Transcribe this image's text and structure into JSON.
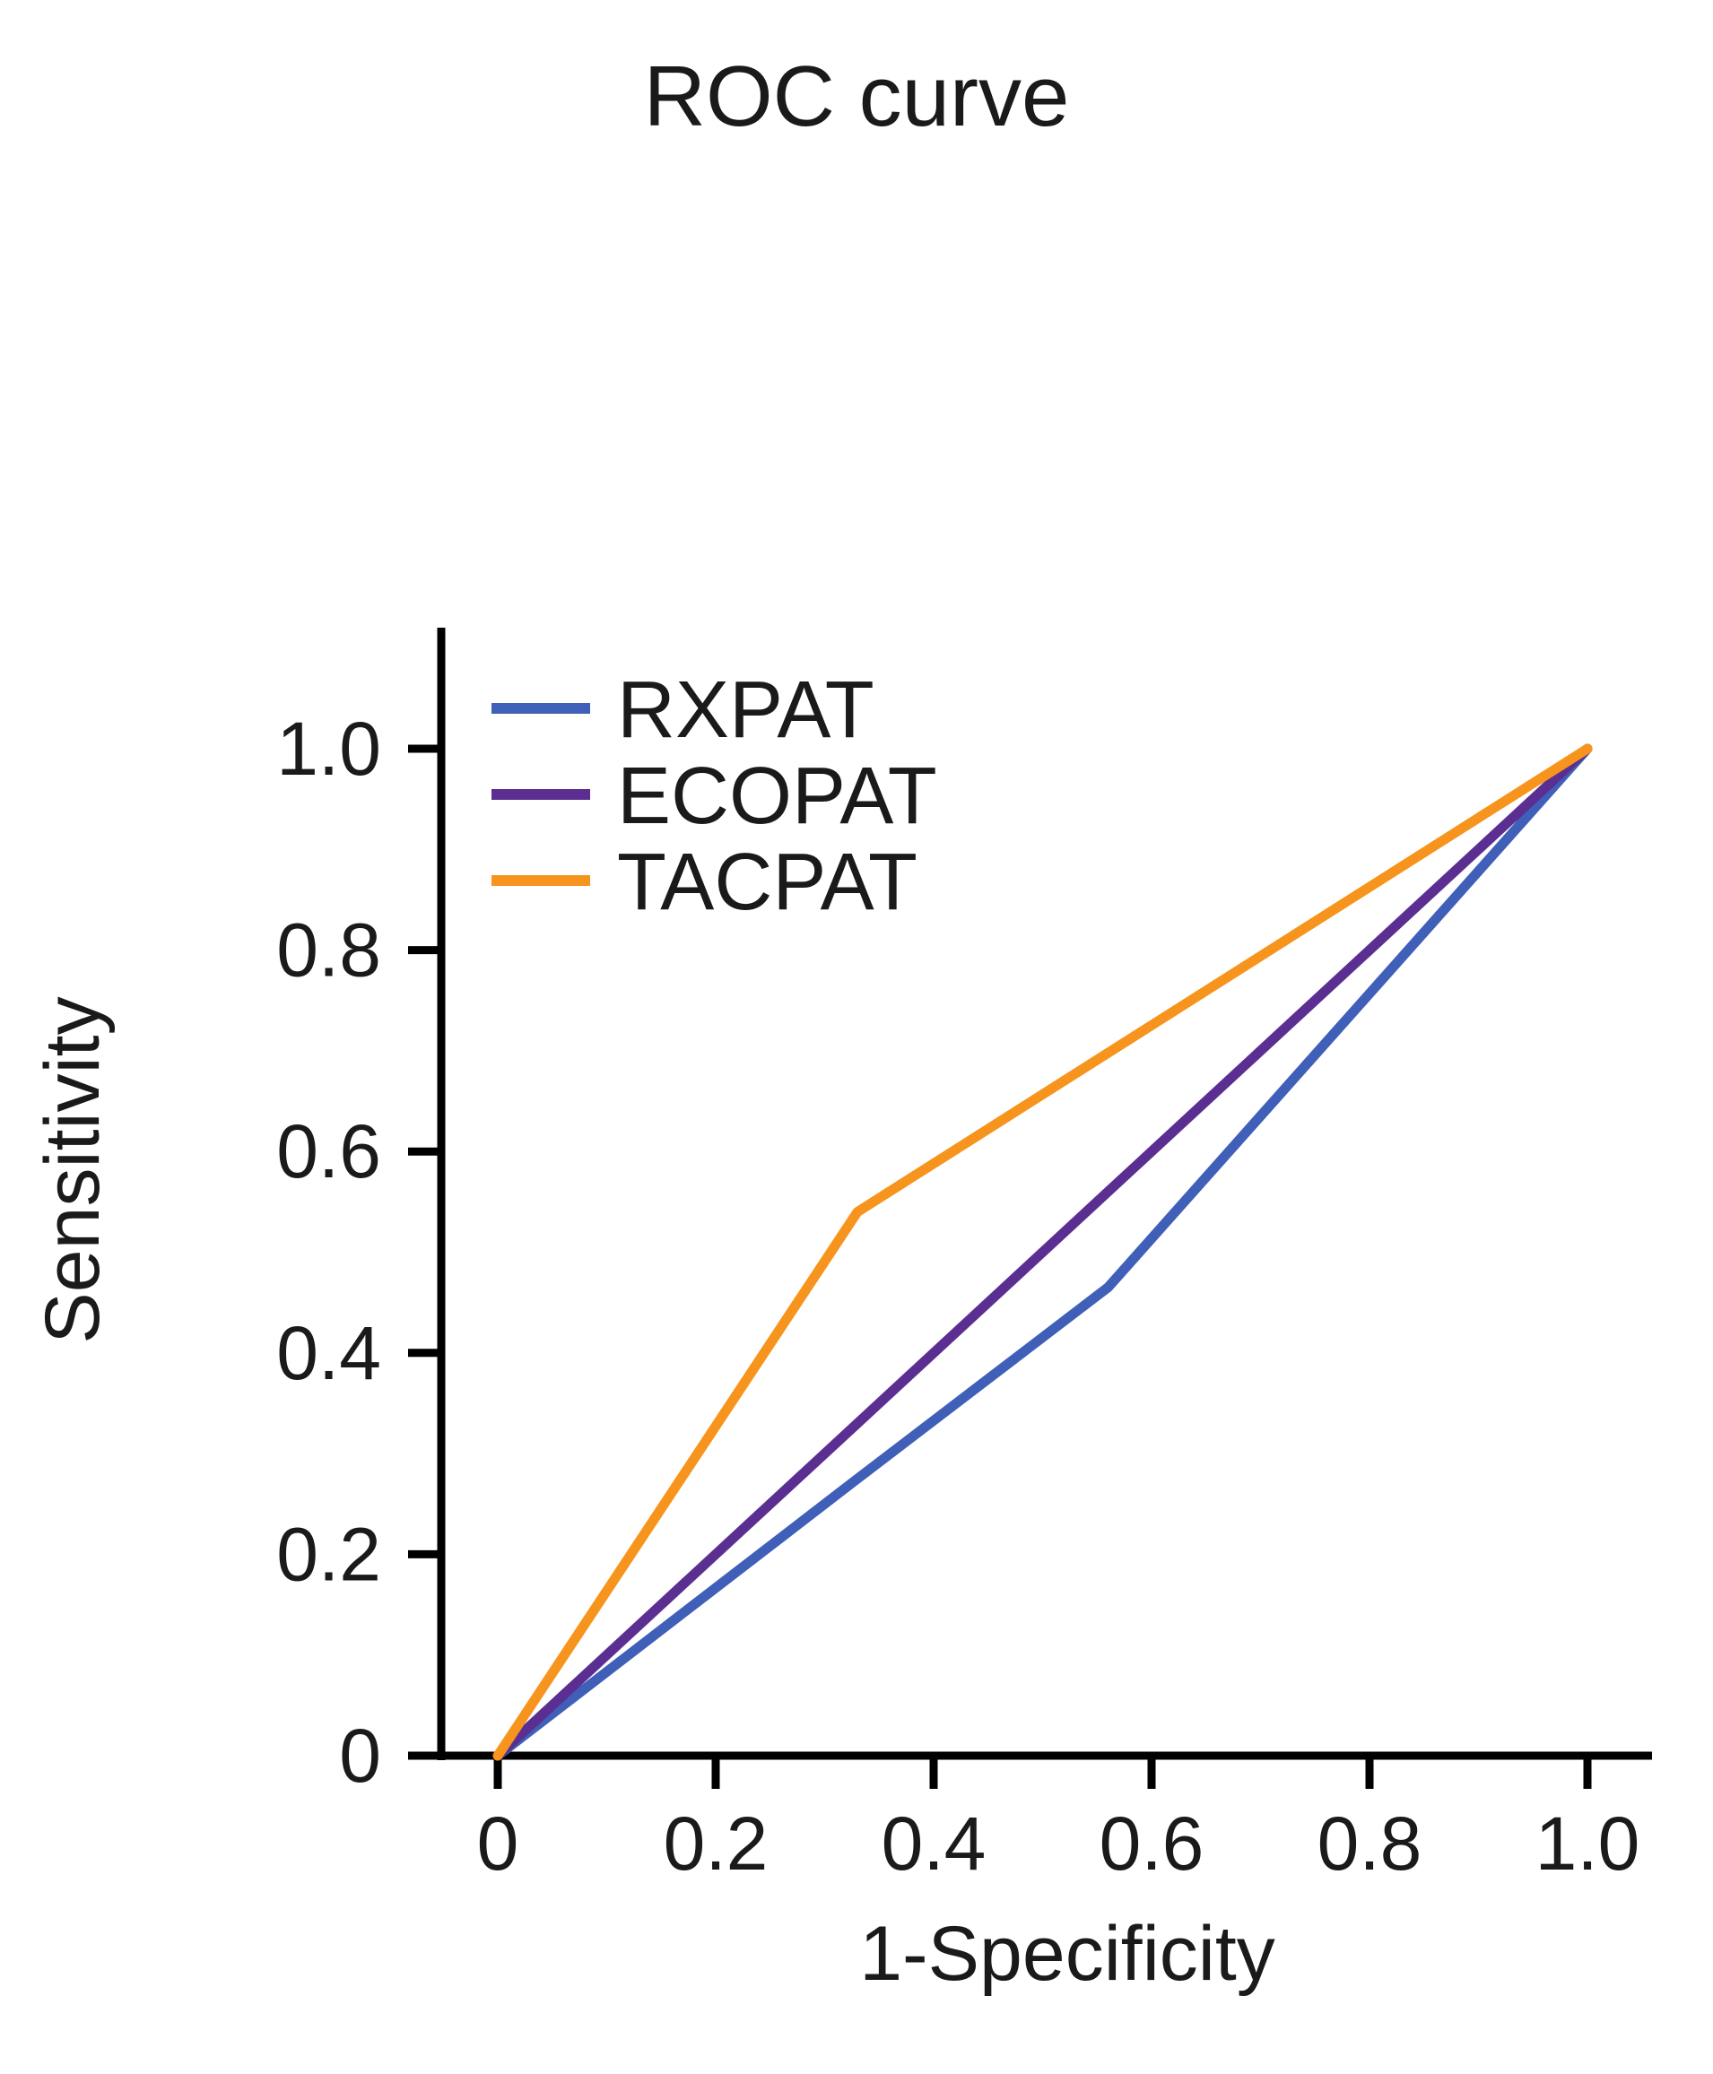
{
  "chart_data": {
    "type": "line",
    "title": "ROC curve",
    "xlabel": "1-Specificity",
    "ylabel": "Sensitivity",
    "xlim": [
      0,
      1.0
    ],
    "ylim": [
      0,
      1.0
    ],
    "x_ticks": [
      "0",
      "0.2",
      "0.4",
      "0.6",
      "0.8",
      "1.0"
    ],
    "y_ticks": [
      "0",
      "0.2",
      "0.4",
      "0.6",
      "0.8",
      "1.0"
    ],
    "grid": false,
    "legend_position": "top-left",
    "series": [
      {
        "name": "RXPAT",
        "color": "#3f5fb8",
        "points": [
          [
            0,
            0
          ],
          [
            0.33,
            0.275
          ],
          [
            0.56,
            0.465
          ],
          [
            1.0,
            1.0
          ]
        ]
      },
      {
        "name": "ECOPAT",
        "color": "#5b2e91",
        "points": [
          [
            0,
            0
          ],
          [
            0.33,
            0.33
          ],
          [
            0.56,
            0.56
          ],
          [
            1.0,
            1.0
          ]
        ]
      },
      {
        "name": "TACPAT",
        "color": "#f7941d",
        "points": [
          [
            0,
            0
          ],
          [
            0.33,
            0.54
          ],
          [
            1.0,
            1.0
          ]
        ]
      }
    ]
  }
}
